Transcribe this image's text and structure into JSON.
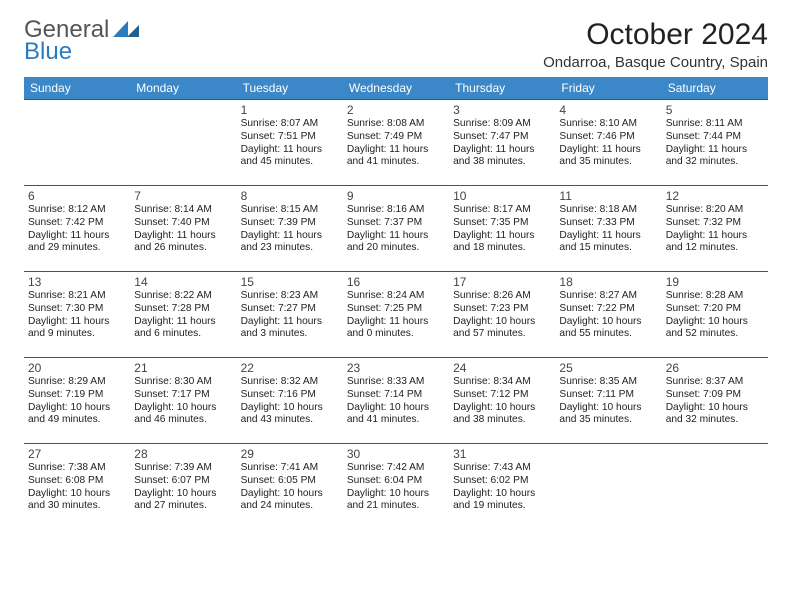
{
  "brand": {
    "line1": "General",
    "line2": "Blue"
  },
  "title": "October 2024",
  "location": "Ondarroa, Basque Country, Spain",
  "colors": {
    "header_bg": "#3b87c8",
    "header_text": "#ffffff",
    "rule": "#2a5a8a",
    "brand_blue": "#2a7bbf",
    "text": "#222222"
  },
  "day_names": [
    "Sunday",
    "Monday",
    "Tuesday",
    "Wednesday",
    "Thursday",
    "Friday",
    "Saturday"
  ],
  "calendar": {
    "type": "table",
    "weeks": [
      [
        null,
        null,
        {
          "n": "1",
          "sr": "8:07 AM",
          "ss": "7:51 PM",
          "dl": "11 hours and 45 minutes."
        },
        {
          "n": "2",
          "sr": "8:08 AM",
          "ss": "7:49 PM",
          "dl": "11 hours and 41 minutes."
        },
        {
          "n": "3",
          "sr": "8:09 AM",
          "ss": "7:47 PM",
          "dl": "11 hours and 38 minutes."
        },
        {
          "n": "4",
          "sr": "8:10 AM",
          "ss": "7:46 PM",
          "dl": "11 hours and 35 minutes."
        },
        {
          "n": "5",
          "sr": "8:11 AM",
          "ss": "7:44 PM",
          "dl": "11 hours and 32 minutes."
        }
      ],
      [
        {
          "n": "6",
          "sr": "8:12 AM",
          "ss": "7:42 PM",
          "dl": "11 hours and 29 minutes."
        },
        {
          "n": "7",
          "sr": "8:14 AM",
          "ss": "7:40 PM",
          "dl": "11 hours and 26 minutes."
        },
        {
          "n": "8",
          "sr": "8:15 AM",
          "ss": "7:39 PM",
          "dl": "11 hours and 23 minutes."
        },
        {
          "n": "9",
          "sr": "8:16 AM",
          "ss": "7:37 PM",
          "dl": "11 hours and 20 minutes."
        },
        {
          "n": "10",
          "sr": "8:17 AM",
          "ss": "7:35 PM",
          "dl": "11 hours and 18 minutes."
        },
        {
          "n": "11",
          "sr": "8:18 AM",
          "ss": "7:33 PM",
          "dl": "11 hours and 15 minutes."
        },
        {
          "n": "12",
          "sr": "8:20 AM",
          "ss": "7:32 PM",
          "dl": "11 hours and 12 minutes."
        }
      ],
      [
        {
          "n": "13",
          "sr": "8:21 AM",
          "ss": "7:30 PM",
          "dl": "11 hours and 9 minutes."
        },
        {
          "n": "14",
          "sr": "8:22 AM",
          "ss": "7:28 PM",
          "dl": "11 hours and 6 minutes."
        },
        {
          "n": "15",
          "sr": "8:23 AM",
          "ss": "7:27 PM",
          "dl": "11 hours and 3 minutes."
        },
        {
          "n": "16",
          "sr": "8:24 AM",
          "ss": "7:25 PM",
          "dl": "11 hours and 0 minutes."
        },
        {
          "n": "17",
          "sr": "8:26 AM",
          "ss": "7:23 PM",
          "dl": "10 hours and 57 minutes."
        },
        {
          "n": "18",
          "sr": "8:27 AM",
          "ss": "7:22 PM",
          "dl": "10 hours and 55 minutes."
        },
        {
          "n": "19",
          "sr": "8:28 AM",
          "ss": "7:20 PM",
          "dl": "10 hours and 52 minutes."
        }
      ],
      [
        {
          "n": "20",
          "sr": "8:29 AM",
          "ss": "7:19 PM",
          "dl": "10 hours and 49 minutes."
        },
        {
          "n": "21",
          "sr": "8:30 AM",
          "ss": "7:17 PM",
          "dl": "10 hours and 46 minutes."
        },
        {
          "n": "22",
          "sr": "8:32 AM",
          "ss": "7:16 PM",
          "dl": "10 hours and 43 minutes."
        },
        {
          "n": "23",
          "sr": "8:33 AM",
          "ss": "7:14 PM",
          "dl": "10 hours and 41 minutes."
        },
        {
          "n": "24",
          "sr": "8:34 AM",
          "ss": "7:12 PM",
          "dl": "10 hours and 38 minutes."
        },
        {
          "n": "25",
          "sr": "8:35 AM",
          "ss": "7:11 PM",
          "dl": "10 hours and 35 minutes."
        },
        {
          "n": "26",
          "sr": "8:37 AM",
          "ss": "7:09 PM",
          "dl": "10 hours and 32 minutes."
        }
      ],
      [
        {
          "n": "27",
          "sr": "7:38 AM",
          "ss": "6:08 PM",
          "dl": "10 hours and 30 minutes."
        },
        {
          "n": "28",
          "sr": "7:39 AM",
          "ss": "6:07 PM",
          "dl": "10 hours and 27 minutes."
        },
        {
          "n": "29",
          "sr": "7:41 AM",
          "ss": "6:05 PM",
          "dl": "10 hours and 24 minutes."
        },
        {
          "n": "30",
          "sr": "7:42 AM",
          "ss": "6:04 PM",
          "dl": "10 hours and 21 minutes."
        },
        {
          "n": "31",
          "sr": "7:43 AM",
          "ss": "6:02 PM",
          "dl": "10 hours and 19 minutes."
        },
        null,
        null
      ]
    ]
  },
  "labels": {
    "sunrise": "Sunrise:",
    "sunset": "Sunset:",
    "daylight": "Daylight:"
  }
}
